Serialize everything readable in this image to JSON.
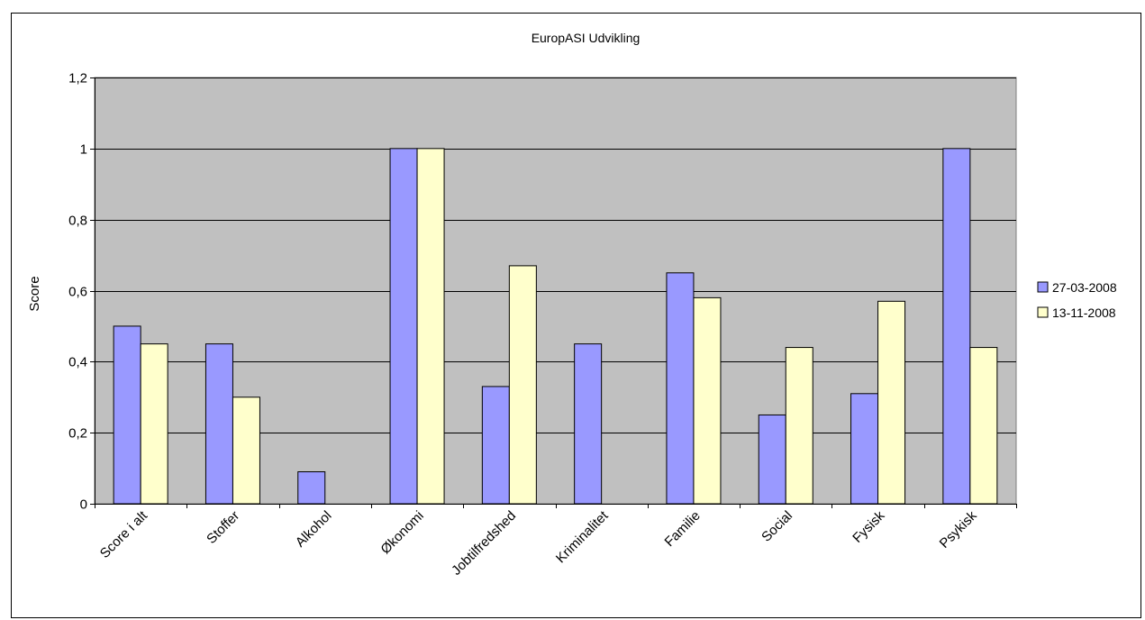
{
  "chart_data": {
    "type": "bar",
    "title": "EuropASI Udvikling",
    "xlabel": "",
    "ylabel": "Score",
    "categories": [
      "Score i alt",
      "Stoffer",
      "Alkohol",
      "Økonomi",
      "Jobtilfredshed",
      "Kriminalitet",
      "Familie",
      "Social",
      "Fysisk",
      "Psykisk"
    ],
    "series": [
      {
        "name": "27-03-2008",
        "color": "#9999ff",
        "values": [
          0.5,
          0.45,
          0.09,
          1.0,
          0.33,
          0.45,
          0.65,
          0.25,
          0.31,
          1.0
        ]
      },
      {
        "name": "13-11-2008",
        "color": "#ffffcc",
        "values": [
          0.45,
          0.3,
          0,
          1.0,
          0.67,
          0,
          0.58,
          0.44,
          0.57,
          0.44
        ]
      }
    ],
    "ylim": [
      0,
      1.2
    ],
    "yticks": [
      0,
      0.2,
      0.4,
      0.6,
      0.8,
      1,
      1.2
    ],
    "ytick_labels": [
      "0",
      "0,2",
      "0,4",
      "0,6",
      "0,8",
      "1",
      "1,2"
    ],
    "grid": true,
    "plot_background": "#c0c0c0",
    "legend_position": "right"
  }
}
